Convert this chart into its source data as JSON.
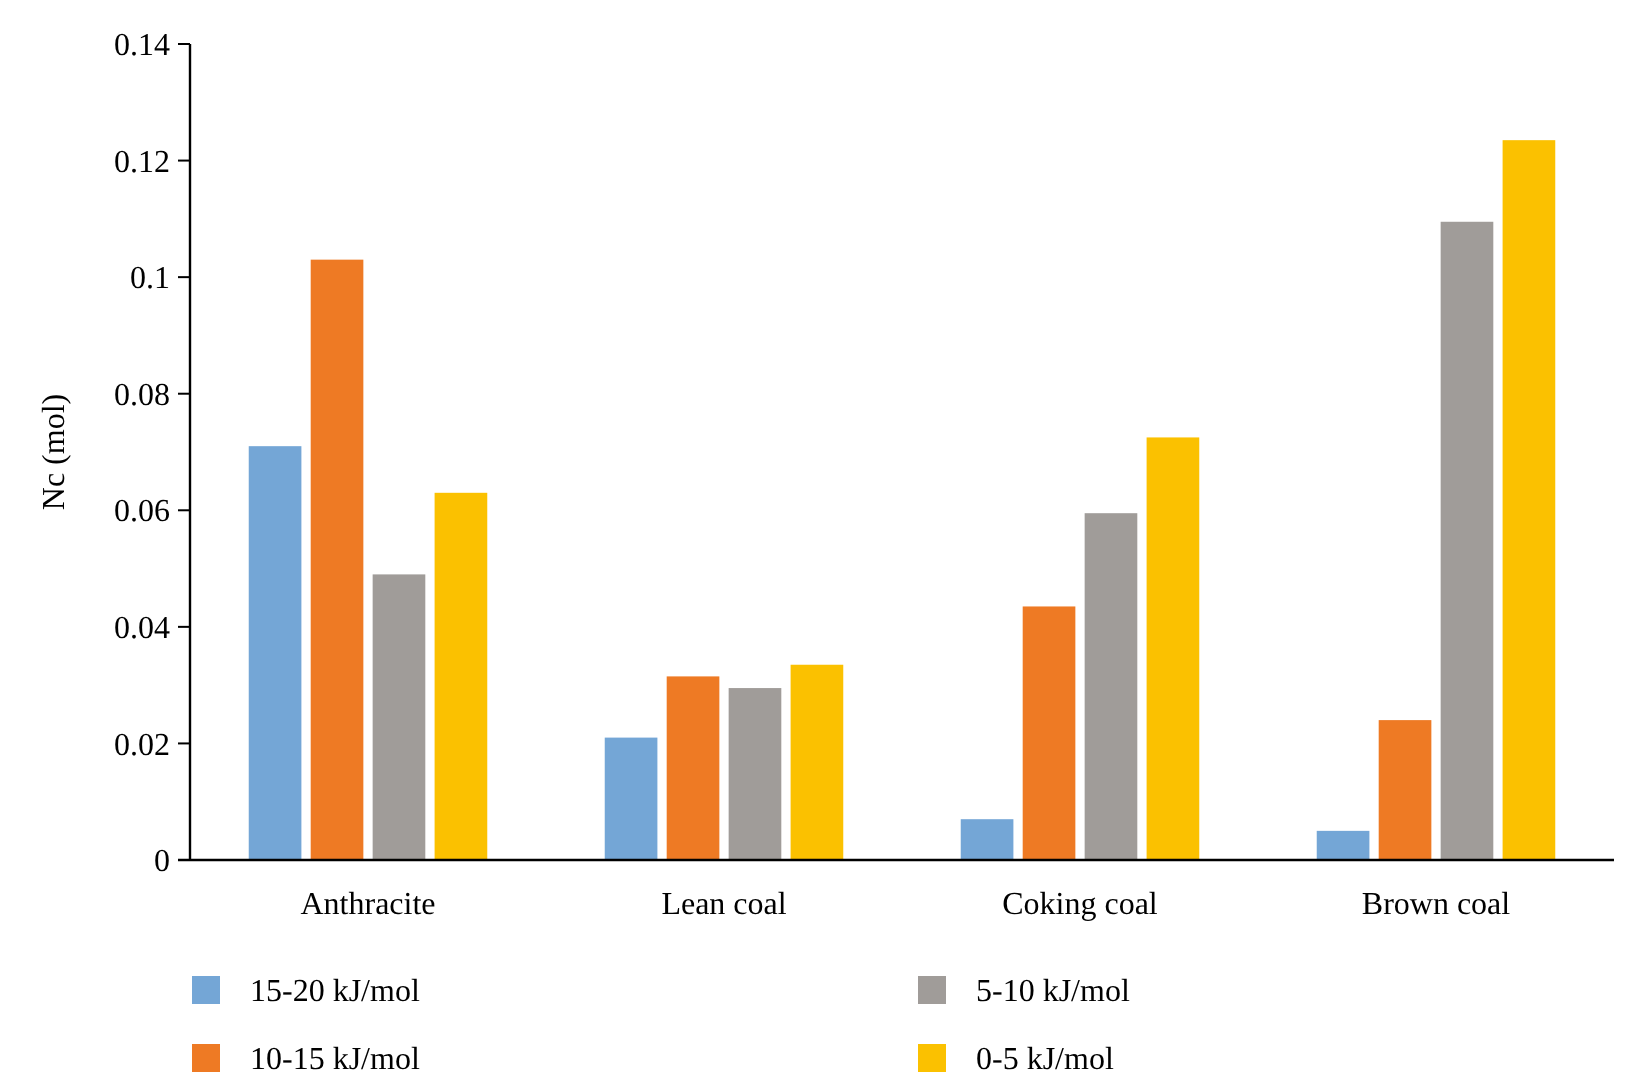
{
  "chart_data": {
    "type": "bar",
    "ylabel": "Nc (mol)",
    "categories": [
      "Anthracite",
      "Lean coal",
      "Coking coal",
      "Brown coal"
    ],
    "series": [
      {
        "name": "15-20 kJ/mol",
        "color": "#74a6d6",
        "values": [
          0.071,
          0.021,
          0.007,
          0.005
        ]
      },
      {
        "name": "10-15 kJ/mol",
        "color": "#ee7a24",
        "values": [
          0.103,
          0.0315,
          0.0435,
          0.024
        ]
      },
      {
        "name": "5-10 kJ/mol",
        "color": "#a09c99",
        "values": [
          0.049,
          0.0295,
          0.0595,
          0.1095
        ]
      },
      {
        "name": "0-5 kJ/mol",
        "color": "#fbc100",
        "values": [
          0.063,
          0.0335,
          0.0725,
          0.1235
        ]
      }
    ],
    "ylim": [
      0,
      0.14
    ],
    "yticks": [
      0,
      0.02,
      0.04,
      0.06,
      0.08,
      0.1,
      0.12,
      0.14
    ],
    "grid": false,
    "legend": "bottom"
  }
}
